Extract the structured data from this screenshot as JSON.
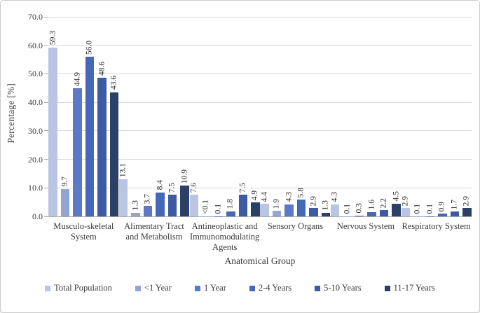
{
  "figure": {
    "background": "#ffffff",
    "border_color": "#cbcbcb",
    "gridline_color": "#d9d9d9",
    "axis_line_color": "#a9a9a9",
    "text_color": "#3b3b3b",
    "data_label_color": "#262626"
  },
  "chart_data": {
    "type": "bar",
    "title": "",
    "xlabel": "Anatomical Group",
    "ylabel": "Percentage [%]",
    "ylim": [
      0,
      70
    ],
    "ytick_step": 10,
    "ytick_labels": [
      "0.0",
      "10.0",
      "20.0",
      "30.0",
      "40.0",
      "50.0",
      "60.0",
      "70.0"
    ],
    "grid": true,
    "legend_position": "bottom",
    "bar_value_labels_rotated": true,
    "categories": [
      "Musculo-skeletal\nSystem",
      "Alimentary Tract\nand Metabolism",
      "Antineoplastic and\nImmunomodulating\nAgents",
      "Sensory Organs",
      "Nervous System",
      "Respiratory System"
    ],
    "series": [
      {
        "name": "Total Population",
        "color": "#b9c5e3",
        "values": [
          59.3,
          13.1,
          7.6,
          4.4,
          4.3,
          2.9
        ],
        "labels": [
          "59.3",
          "13.1",
          "7.6",
          "4.4",
          "4.3",
          "2.9"
        ]
      },
      {
        "name": "<1 Year",
        "color": "#93a6d2",
        "values": [
          9.7,
          1.3,
          0.05,
          1.9,
          0.1,
          0.1
        ],
        "labels": [
          "9.7",
          "1.3",
          "<0.1",
          "1.9",
          "0.1",
          "0.1"
        ]
      },
      {
        "name": "1 Year",
        "color": "#5b79c7",
        "values": [
          44.9,
          3.7,
          0.1,
          4.3,
          0.3,
          0.1
        ],
        "labels": [
          "44.9",
          "3.7",
          "0.1",
          "4.3",
          "0.3",
          "0.1"
        ]
      },
      {
        "name": "2-4 Years",
        "color": "#4667b7",
        "values": [
          56.0,
          8.4,
          1.8,
          5.8,
          1.6,
          0.9
        ],
        "labels": [
          "56.0",
          "8.4",
          "1.8",
          "5.8",
          "1.6",
          "0.9"
        ]
      },
      {
        "name": "5-10 Years",
        "color": "#3d5ba5",
        "values": [
          48.6,
          7.5,
          7.5,
          2.9,
          2.2,
          1.7
        ],
        "labels": [
          "48.6",
          "7.5",
          "7.5",
          "2.9",
          "2.2",
          "1.7"
        ]
      },
      {
        "name": "11-17 Years",
        "color": "#2b4067",
        "values": [
          43.6,
          10.9,
          4.9,
          1.3,
          4.5,
          2.9
        ],
        "labels": [
          "43.6",
          "10.9",
          "4.9",
          "1.3",
          "4.5",
          "2.9"
        ]
      }
    ]
  }
}
